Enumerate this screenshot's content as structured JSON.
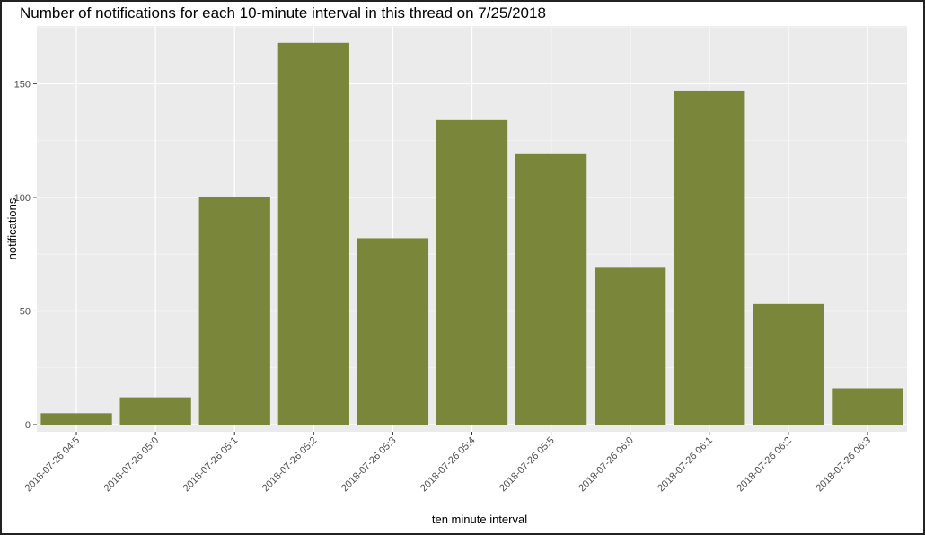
{
  "chart_data": {
    "type": "bar",
    "title": "Number of notifications for each 10-minute interval in this thread on 7/25/2018",
    "xlabel": "ten minute interval",
    "ylabel": "notifications",
    "categories": [
      "2018-07-26 04:5",
      "2018-07-26 05:0",
      "2018-07-26 05:1",
      "2018-07-26 05:2",
      "2018-07-26 05:3",
      "2018-07-26 05:4",
      "2018-07-26 05:5",
      "2018-07-26 06:0",
      "2018-07-26 06:1",
      "2018-07-26 06:2",
      "2018-07-26 06:3"
    ],
    "values": [
      5,
      12,
      100,
      168,
      82,
      134,
      119,
      69,
      147,
      53,
      16
    ],
    "ylim": [
      -7,
      177
    ],
    "yticks": [
      0,
      50,
      100,
      150
    ],
    "ytick_labels": [
      "0",
      "50",
      "100",
      "150"
    ],
    "grid": true,
    "colors": {
      "bar": "#7a8639",
      "panel": "#ebebeb",
      "grid_major": "#ffffff",
      "tick_text": "#4d4d4d",
      "tick_mark": "#333333"
    }
  }
}
